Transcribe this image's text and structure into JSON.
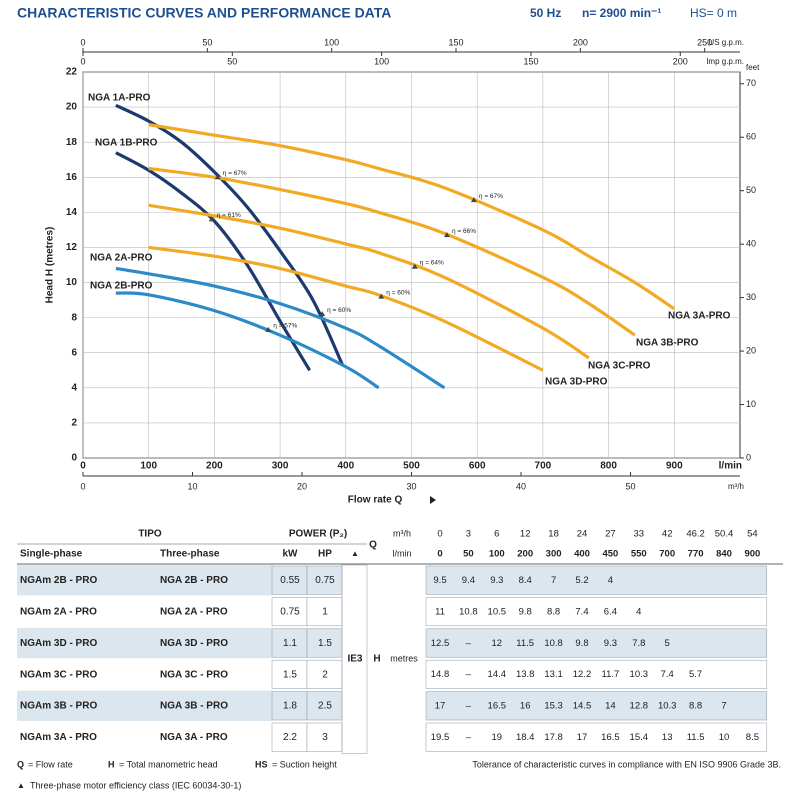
{
  "header": {
    "title": "CHARACTERISTIC CURVES AND PERFORMANCE DATA",
    "frequency": "50 Hz",
    "speed": "n= 2900 min⁻¹",
    "suction": "HS= 0 m"
  },
  "chart_data": {
    "type": "line",
    "xlabel": "Flow rate Q",
    "ylabel": "Head H (metres)",
    "xunit": "l/min",
    "xlim": [
      0,
      1000
    ],
    "xticks": [
      0,
      100,
      200,
      300,
      400,
      500,
      600,
      700,
      800,
      900
    ],
    "ylim": [
      0,
      22
    ],
    "yticks": [
      0,
      2,
      4,
      6,
      8,
      10,
      12,
      14,
      16,
      18,
      20,
      22
    ],
    "grid": true,
    "secondary_axes": [
      {
        "label": "m³/h",
        "side": "bottom",
        "lim": [
          0,
          60
        ],
        "ticks": [
          0,
          10,
          20,
          30,
          40,
          50
        ]
      },
      {
        "label": "US g.p.m.",
        "side": "top",
        "lim": [
          0,
          264.2
        ],
        "ticks": [
          0,
          50,
          100,
          150,
          200,
          250
        ]
      },
      {
        "label": "Imp g.p.m.",
        "side": "top",
        "lim": [
          0,
          220
        ],
        "ticks": [
          0,
          50,
          100,
          150,
          200
        ]
      },
      {
        "label": "feet",
        "side": "right",
        "lim": [
          0,
          72.2
        ],
        "ticks": [
          0,
          10,
          20,
          30,
          40,
          50,
          60,
          70
        ]
      }
    ],
    "series": [
      {
        "name": "NGA 1A-PRO",
        "color": "#1b3a6e",
        "x": [
          50,
          100,
          150,
          200,
          250,
          300,
          350,
          395
        ],
        "values": [
          20.1,
          19.2,
          18.0,
          16.3,
          14.3,
          11.8,
          9.0,
          5.3
        ]
      },
      {
        "name": "NGA 1B-PRO",
        "color": "#1b3a6e",
        "x": [
          50,
          100,
          150,
          200,
          250,
          300,
          345
        ],
        "values": [
          17.4,
          16.4,
          15.1,
          13.5,
          11.0,
          7.8,
          5.0
        ]
      },
      {
        "name": "NGA 2A-PRO",
        "color": "#2b8ac7",
        "x": [
          50,
          100,
          200,
          300,
          400,
          450,
          550
        ],
        "values": [
          10.8,
          10.5,
          9.8,
          8.8,
          7.4,
          6.4,
          4
        ]
      },
      {
        "name": "NGA 2B-PRO",
        "color": "#2b8ac7",
        "x": [
          50,
          100,
          200,
          300,
          400,
          450
        ],
        "values": [
          9.4,
          9.3,
          8.4,
          7,
          5.2,
          4
        ]
      },
      {
        "name": "NGA 3A-PRO",
        "color": "#f2a923",
        "x": [
          100,
          200,
          300,
          400,
          450,
          550,
          700,
          770,
          840,
          900
        ],
        "values": [
          19,
          18.4,
          17.8,
          17,
          16.5,
          15.4,
          13,
          11.5,
          10,
          8.5
        ]
      },
      {
        "name": "NGA 3B-PRO",
        "color": "#f2a923",
        "x": [
          100,
          200,
          300,
          400,
          450,
          550,
          700,
          770,
          840
        ],
        "values": [
          16.5,
          16,
          15.3,
          14.5,
          14,
          12.8,
          10.3,
          8.8,
          7
        ]
      },
      {
        "name": "NGA 3C-PRO",
        "color": "#f2a923",
        "x": [
          100,
          200,
          300,
          400,
          450,
          550,
          700,
          770
        ],
        "values": [
          14.4,
          13.8,
          13.1,
          12.2,
          11.7,
          10.3,
          7.4,
          5.7
        ]
      },
      {
        "name": "NGA 3D-PRO",
        "color": "#f2a923",
        "x": [
          100,
          200,
          300,
          400,
          450,
          550,
          700
        ],
        "values": [
          12,
          11.5,
          10.8,
          9.8,
          9.3,
          7.8,
          5
        ]
      }
    ],
    "annotations": [
      {
        "text": "η = 67%",
        "x": 205,
        "y": 16.0
      },
      {
        "text": "η = 61%",
        "x": 196,
        "y": 13.6
      },
      {
        "text": "η = 60%",
        "x": 364,
        "y": 8.2
      },
      {
        "text": "η = 57%",
        "x": 282,
        "y": 7.3
      },
      {
        "text": "η = 67%",
        "x": 595,
        "y": 14.7
      },
      {
        "text": "η = 66%",
        "x": 554,
        "y": 12.7
      },
      {
        "text": "η = 64%",
        "x": 505,
        "y": 10.9
      },
      {
        "text": "η = 60%",
        "x": 454,
        "y": 9.2
      }
    ]
  },
  "table": {
    "tipo": "TIPO",
    "single": "Single-phase",
    "three": "Three-phase",
    "power": "POWER (P₂)",
    "kw": "kW",
    "hp": "HP",
    "class_symbol": "▲",
    "q": "Q",
    "m3h_unit": "m³/h",
    "lmin_unit": "l/min",
    "q_m3h": [
      "0",
      "3",
      "6",
      "12",
      "18",
      "24",
      "27",
      "33",
      "42",
      "46.2",
      "50.4",
      "54"
    ],
    "q_lmin": [
      "0",
      "50",
      "100",
      "200",
      "300",
      "400",
      "450",
      "550",
      "700",
      "770",
      "840",
      "900"
    ],
    "ie": "IE3",
    "h_label": "H",
    "h_unit": "metres",
    "rows": [
      {
        "single": "NGAm 2B - PRO",
        "three": "NGA 2B - PRO",
        "kw": 0.55,
        "hp": 0.75,
        "h": [
          9.5,
          9.4,
          9.3,
          8.4,
          7,
          5.2,
          4
        ]
      },
      {
        "single": "NGAm 2A - PRO",
        "three": "NGA 2A - PRO",
        "kw": 0.75,
        "hp": 1,
        "h": [
          11,
          10.8,
          10.5,
          9.8,
          8.8,
          7.4,
          6.4,
          4
        ]
      },
      {
        "single": "NGAm 3D - PRO",
        "three": "NGA 3D - PRO",
        "kw": 1.1,
        "hp": 1.5,
        "h": [
          12.5,
          "–",
          12,
          11.5,
          10.8,
          9.8,
          9.3,
          7.8,
          5
        ]
      },
      {
        "single": "NGAm 3C - PRO",
        "three": "NGA 3C - PRO",
        "kw": 1.5,
        "hp": 2,
        "h": [
          14.8,
          "–",
          14.4,
          13.8,
          13.1,
          12.2,
          11.7,
          10.3,
          7.4,
          5.7
        ]
      },
      {
        "single": "NGAm 3B - PRO",
        "three": "NGA 3B - PRO",
        "kw": 1.8,
        "hp": 2.5,
        "h": [
          17,
          "–",
          16.5,
          16,
          15.3,
          14.5,
          14,
          12.8,
          10.3,
          8.8,
          7
        ]
      },
      {
        "single": "NGAm 3A - PRO",
        "three": "NGA 3A - PRO",
        "kw": 2.2,
        "hp": 3,
        "h": [
          19.5,
          "–",
          19,
          18.4,
          17.8,
          17,
          16.5,
          15.4,
          13,
          11.5,
          10,
          8.5
        ]
      }
    ]
  },
  "footer": {
    "legend": [
      {
        "key": "Q",
        "text": "= Flow rate"
      },
      {
        "key": "H",
        "text": "= Total manometric head"
      },
      {
        "key": "HS",
        "text": "= Suction height"
      }
    ],
    "tolerance": "Tolerance of characteristic curves in compliance with EN ISO 9906 Grade 3B.",
    "class_note": {
      "symbol": "▲",
      "text": "Three-phase motor efficiency class (IEC 60034-30-1)"
    }
  }
}
